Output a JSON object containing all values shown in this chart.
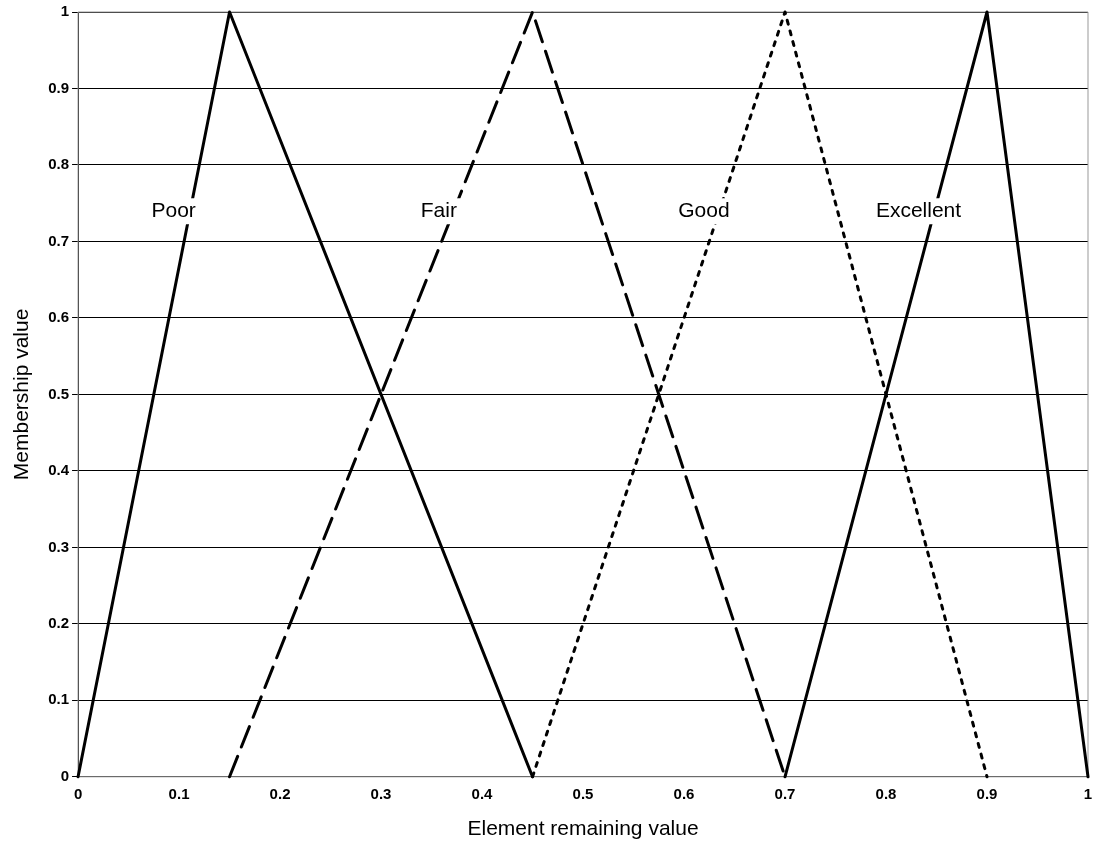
{
  "chart_data": {
    "type": "line",
    "xlabel": "Element remaining value",
    "ylabel": "Membership value",
    "xlim": [
      0,
      1
    ],
    "xticks": [
      0,
      0.1,
      0.2,
      0.3,
      0.4,
      0.5,
      0.6,
      0.7,
      0.8,
      0.9,
      1
    ],
    "ylim": [
      0,
      1
    ],
    "yticks": [
      0,
      0.1,
      0.2,
      0.3,
      0.4,
      0.5,
      0.6,
      0.7,
      0.8,
      0.9,
      1
    ],
    "grid": "y",
    "legend": false,
    "marker": "none",
    "series": [
      {
        "name": "Poor",
        "color": "#000000",
        "line_style": "solid",
        "x": [
          0,
          0.15,
          0.45
        ],
        "values": [
          0,
          1,
          0
        ]
      },
      {
        "name": "Fair",
        "color": "#000000",
        "line_style": "dashed",
        "x": [
          0.15,
          0.45,
          0.7
        ],
        "values": [
          0,
          1,
          0
        ]
      },
      {
        "name": "Good",
        "color": "#000000",
        "line_style": "dotted",
        "x": [
          0.45,
          0.7,
          0.9
        ],
        "values": [
          0,
          1,
          0
        ]
      },
      {
        "name": "Excellent",
        "color": "#000000",
        "line_style": "solid",
        "x": [
          0.7,
          0.9,
          1
        ],
        "values": [
          0,
          1,
          0
        ]
      }
    ]
  }
}
